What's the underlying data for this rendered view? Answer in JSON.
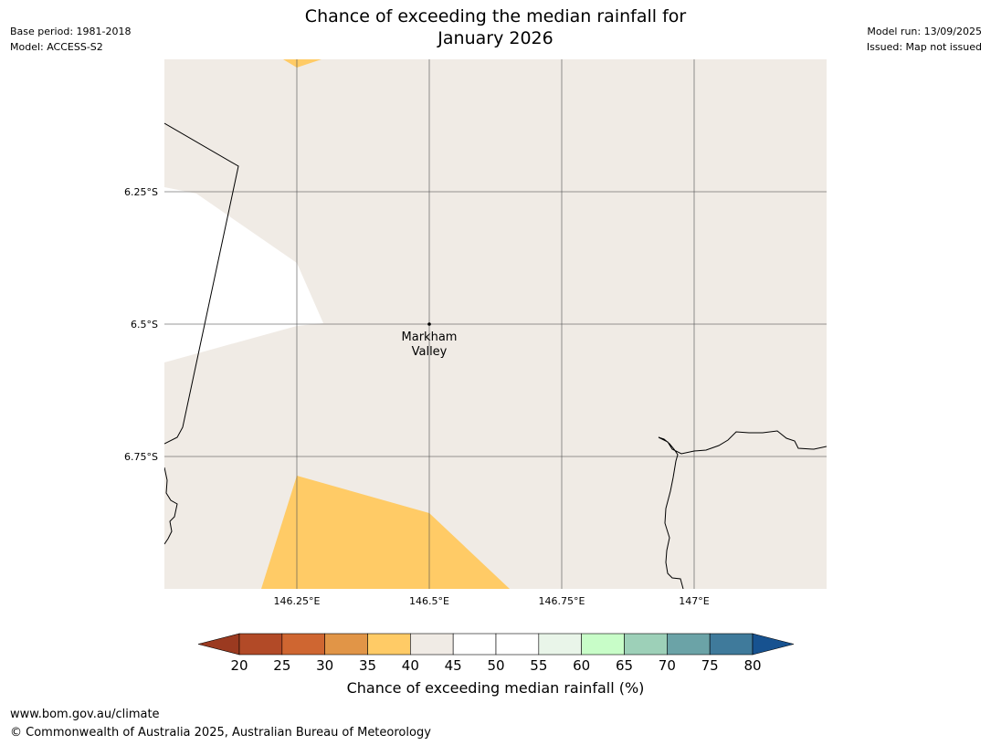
{
  "header": {
    "title_line1": "Chance of exceeding the median rainfall for",
    "title_line2": "January 2026",
    "base_period": "Base period: 1981-2018",
    "model": "Model: ACCESS-S2",
    "model_run": "Model run: 13/09/2025",
    "issued": "Issued: Map not issued"
  },
  "map": {
    "background_class_color": "#f0ebe5",
    "highlight_class_color": "#ffcb66",
    "lon_ticks": [
      146.25,
      146.5,
      146.75,
      147.0
    ],
    "lon_tick_labels": [
      "146.25°E",
      "146.5°E",
      "146.75°E",
      "147°E"
    ],
    "lat_ticks": [
      -6.25,
      -6.5,
      -6.75
    ],
    "lat_tick_labels": [
      "6.25°S",
      "6.5°S",
      "6.75°S"
    ],
    "extent": {
      "lon_min": 146.0,
      "lon_max": 147.25,
      "lat_min": -7.0,
      "lat_max": -6.0
    },
    "place": {
      "name_line1": "Markham",
      "name_line2": "Valley",
      "lon": 146.5,
      "lat": -6.5
    }
  },
  "colorbar": {
    "ticks": [
      "20",
      "25",
      "30",
      "35",
      "40",
      "45",
      "50",
      "55",
      "60",
      "65",
      "70",
      "75",
      "80"
    ],
    "colors": [
      "#b24a27",
      "#cf6631",
      "#e19547",
      "#ffcb66",
      "#f0ebe5",
      "#ffffff",
      "#ffffff",
      "#e9f5e9",
      "#c8fdc8",
      "#9dd0b8",
      "#6ba3a7",
      "#3f7a9b"
    ],
    "under_color": "#9b3a20",
    "over_color": "#175290",
    "label": "Chance of exceeding median rainfall (%)"
  },
  "footer": {
    "url": "www.bom.gov.au/climate",
    "copyright": "© Commonwealth of Australia 2025, Australian Bureau of Meteorology"
  }
}
